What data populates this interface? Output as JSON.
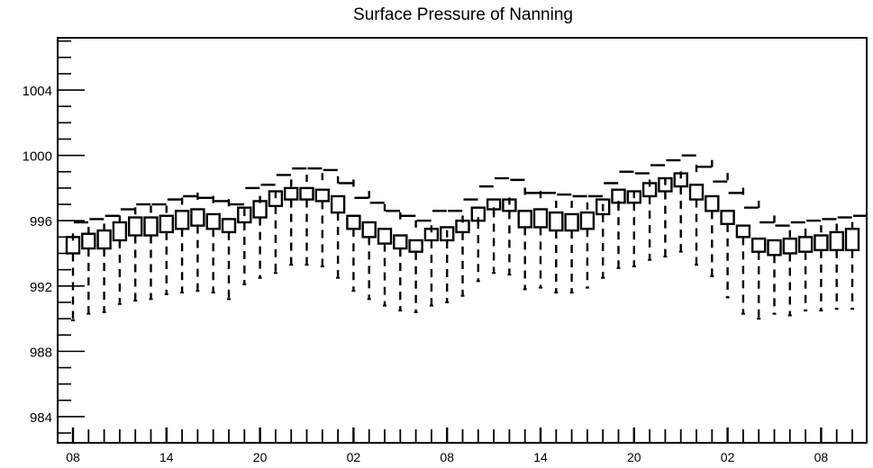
{
  "chart_data": {
    "type": "box",
    "title": "Surface Pressure of Nanning",
    "xlabel": "",
    "ylabel": "",
    "x_tick_labels": [
      "08",
      "14",
      "20",
      "02",
      "08",
      "14",
      "20",
      "02",
      "08"
    ],
    "y_ticks": [
      984,
      988,
      992,
      996,
      1000,
      1004
    ],
    "ylim": [
      982.4,
      1007.2
    ],
    "grid": false,
    "legend": "none",
    "median": [
      995.0,
      995.4,
      995.6,
      996.1,
      996.6,
      996.7,
      996.7,
      997.2,
      997.5,
      997.3,
      997.1,
      996.5,
      997.3,
      997.6,
      998.3,
      998.6,
      998.7,
      998.5,
      998.3,
      997.6,
      996.8,
      996.3,
      995.8,
      995.5,
      995.2,
      996.1,
      996.0,
      996.6,
      997.2,
      997.8,
      997.6,
      997.0,
      997.0,
      996.9,
      996.8,
      997.0,
      997.6,
      998.3,
      998.4,
      998.8,
      999.2,
      999.5,
      998.7,
      997.8,
      997.0,
      996.1,
      995.2,
      995.3,
      995.5,
      995.6,
      995.7
    ],
    "q1": [
      994.0,
      994.3,
      994.3,
      994.8,
      995.1,
      995.1,
      995.3,
      995.5,
      995.7,
      995.5,
      995.3,
      995.9,
      996.2,
      996.9,
      997.3,
      997.3,
      997.2,
      996.5,
      995.5,
      995.0,
      994.6,
      994.3,
      994.1,
      994.8,
      994.8,
      995.3,
      996.0,
      996.7,
      996.6,
      995.6,
      995.6,
      995.4,
      995.4,
      995.5,
      996.4,
      997.1,
      997.1,
      997.5,
      997.8,
      998.1,
      997.3,
      996.6,
      995.8,
      995.0,
      994.1,
      993.9,
      994.0,
      994.1,
      994.2,
      994.2,
      994.2
    ],
    "q3": [
      995.0,
      995.2,
      995.4,
      995.9,
      996.2,
      996.2,
      996.3,
      996.6,
      996.7,
      996.4,
      996.1,
      996.8,
      997.2,
      997.8,
      998.0,
      998.0,
      997.9,
      997.5,
      996.3,
      995.9,
      995.5,
      995.1,
      994.8,
      995.5,
      995.6,
      996.0,
      996.8,
      997.3,
      997.3,
      996.6,
      996.7,
      996.5,
      996.4,
      996.5,
      997.3,
      997.9,
      997.8,
      998.3,
      998.6,
      998.9,
      998.2,
      997.5,
      996.6,
      995.7,
      994.9,
      994.8,
      994.9,
      995.0,
      995.1,
      995.3,
      995.5
    ],
    "whisker_low": [
      989.9,
      990.3,
      990.4,
      990.9,
      991.1,
      991.2,
      991.5,
      991.6,
      991.7,
      991.6,
      991.2,
      992.1,
      992.5,
      992.8,
      993.3,
      993.3,
      993.2,
      992.5,
      991.7,
      991.2,
      990.8,
      990.5,
      990.4,
      990.8,
      991.0,
      991.4,
      992.3,
      992.8,
      992.7,
      991.8,
      991.9,
      991.6,
      991.6,
      991.9,
      992.5,
      993.1,
      993.2,
      993.6,
      993.8,
      994.1,
      993.3,
      992.6,
      991.3,
      990.3,
      990.0,
      990.3,
      990.2,
      990.5,
      990.5,
      990.6,
      990.6
    ],
    "whisker_high": [
      995.9,
      996.1,
      996.3,
      996.7,
      997.0,
      997.0,
      997.3,
      997.5,
      997.4,
      997.2,
      997.0,
      998.0,
      998.2,
      998.8,
      999.2,
      999.2,
      999.1,
      998.3,
      997.4,
      997.1,
      996.6,
      996.3,
      996.0,
      996.6,
      996.6,
      997.3,
      998.1,
      998.6,
      998.5,
      997.7,
      997.7,
      997.6,
      997.5,
      997.5,
      998.3,
      999.0,
      998.9,
      999.4,
      999.7,
      1000.0,
      999.3,
      998.4,
      997.7,
      996.8,
      995.9,
      995.7,
      995.9,
      996.0,
      996.1,
      996.2,
      996.3
    ],
    "colors": {
      "axis": "#000000",
      "box": "#000000",
      "background": "#ffffff"
    }
  }
}
